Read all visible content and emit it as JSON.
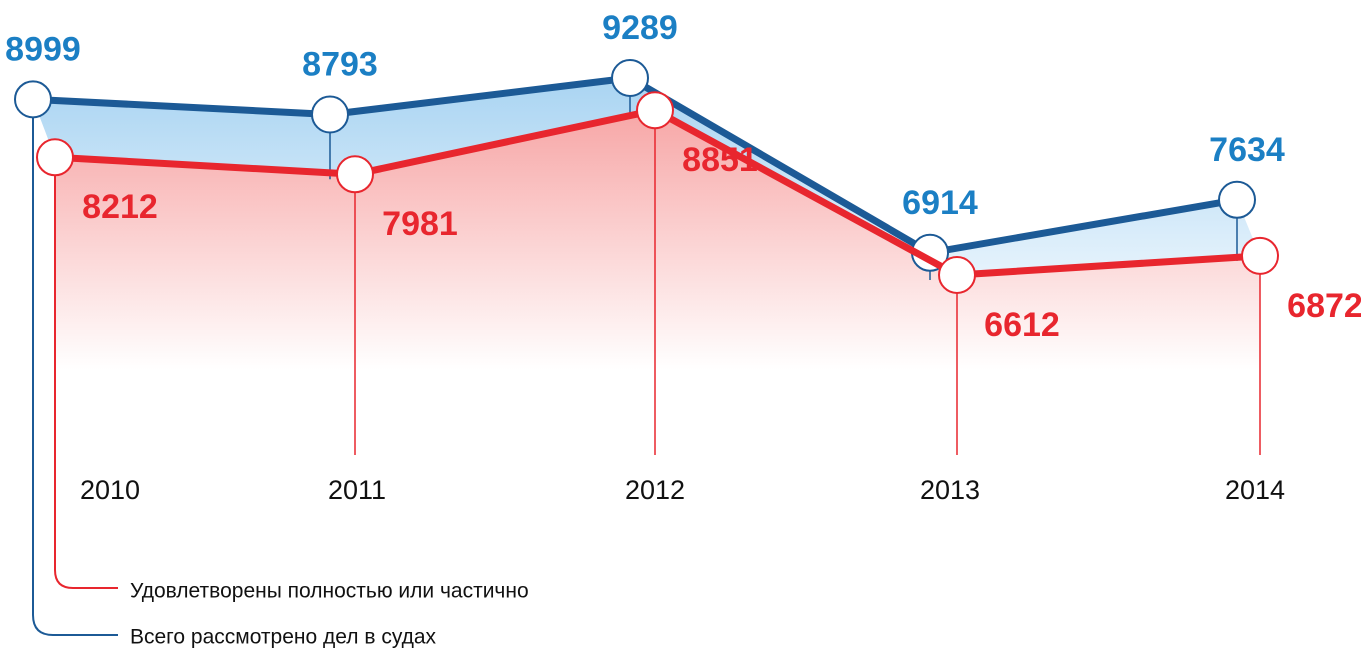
{
  "chart_data": {
    "type": "line",
    "categories": [
      "2010",
      "2011",
      "2012",
      "2013",
      "2014"
    ],
    "series": [
      {
        "name": "Всего рассмотрено дел в судах",
        "color": "#1c5a96",
        "values": [
          8999,
          8793,
          9289,
          6914,
          7634
        ]
      },
      {
        "name": "Удовлетворены полностью или частично",
        "color": "#e8262e",
        "values": [
          8212,
          7981,
          8851,
          6612,
          6872
        ]
      }
    ]
  }
}
